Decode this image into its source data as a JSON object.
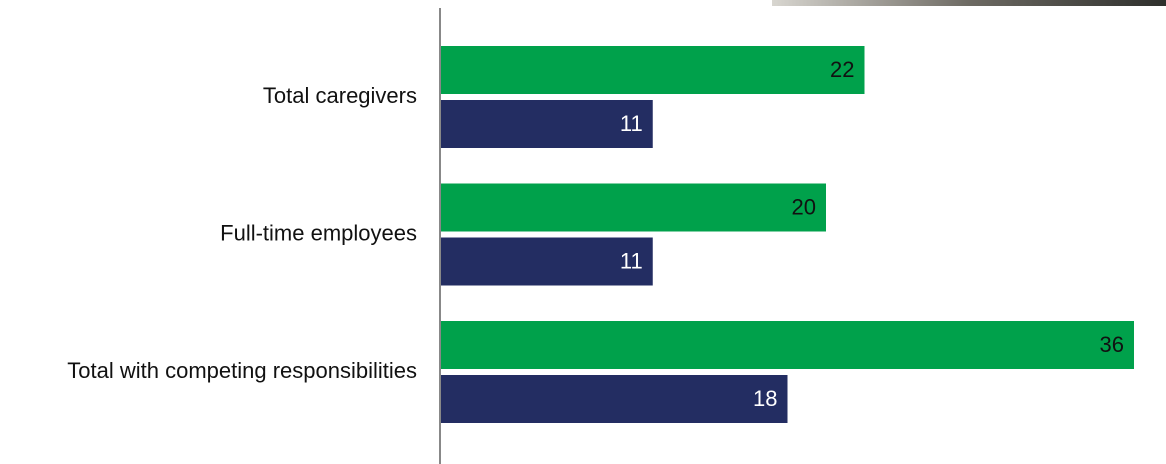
{
  "chart_data": {
    "type": "bar",
    "orientation": "horizontal",
    "categories": [
      "Total caregivers",
      "Full-time employees",
      "Total with competing responsibilities"
    ],
    "series": [
      {
        "color": "#00a14b",
        "values": [
          22,
          20,
          36
        ]
      },
      {
        "color": "#232d62",
        "values": [
          11,
          11,
          18
        ]
      }
    ]
  }
}
